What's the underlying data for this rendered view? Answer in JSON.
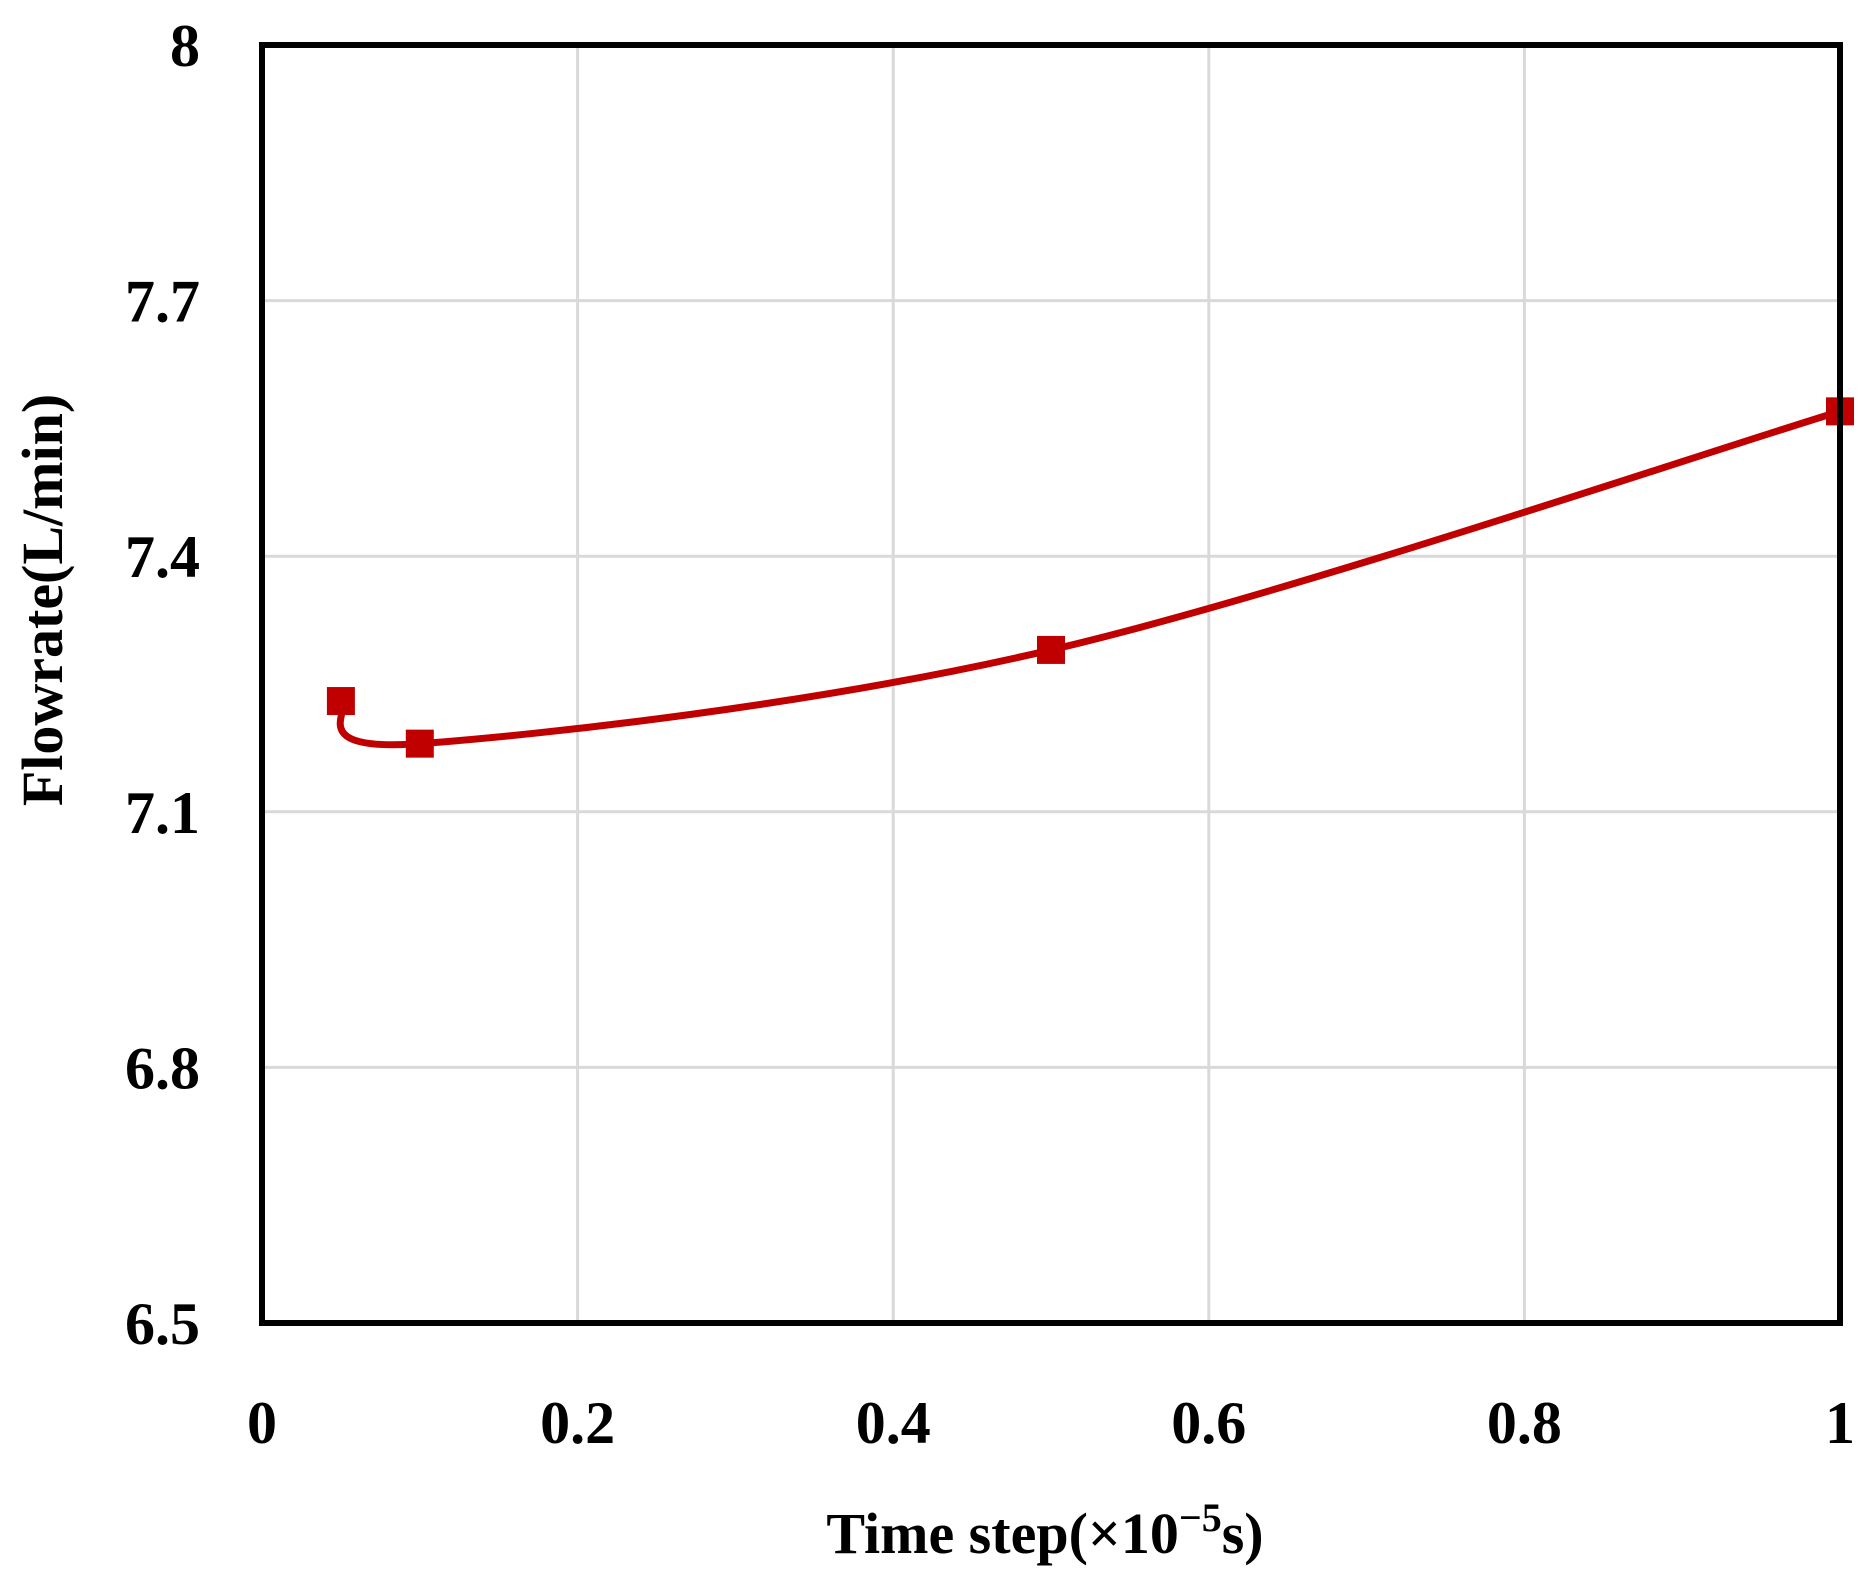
{
  "chart_data": {
    "type": "line",
    "title": "",
    "xlabel": "Time step(×10",
    "xlabel_sup": "−5",
    "xlabel_suffix": "s)",
    "ylabel": "Flowrate(L/min)",
    "xlim": [
      0,
      1
    ],
    "ylim": [
      6.5,
      8
    ],
    "x_ticks": [
      0,
      0.2,
      0.4,
      0.6,
      0.8,
      1
    ],
    "x_tick_labels": [
      "0",
      "0.2",
      "0.4",
      "0.6",
      "0.8",
      "1"
    ],
    "y_ticks": [
      6.5,
      6.8,
      7.1,
      7.4,
      7.7,
      8
    ],
    "y_tick_labels": [
      "6.5",
      "6.8",
      "7.1",
      "7.4",
      "7.7",
      "8"
    ],
    "grid": true,
    "legend": "none",
    "series": [
      {
        "x": [
          0.05,
          0.1,
          0.5,
          1.0
        ],
        "y": [
          7.23,
          7.18,
          7.29,
          7.57
        ],
        "color": "#c00000",
        "marker": "square",
        "smooth": true
      }
    ]
  }
}
